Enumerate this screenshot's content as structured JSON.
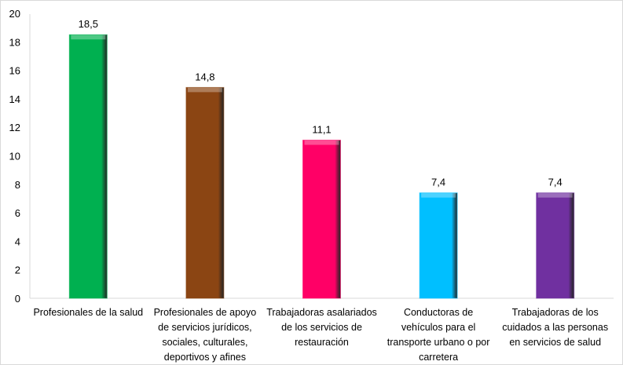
{
  "chart_data": {
    "type": "bar",
    "title": "",
    "xlabel": "",
    "ylabel": "",
    "ylim": [
      0,
      20
    ],
    "yticks": [
      0,
      2,
      4,
      6,
      8,
      10,
      12,
      14,
      16,
      18,
      20
    ],
    "grid": false,
    "categories": [
      "Profesionales de la salud",
      "Profesionales de apoyo de servicios jurídicos, sociales, culturales, deportivos y afines",
      "Trabajadoras asalariados de los servicios de restauración",
      "Conductoras de vehículos para el transporte urbano o por carretera",
      "Trabajadoras de los cuidados a las personas en servicios de salud"
    ],
    "category_lines": [
      [
        "Profesionales de la salud"
      ],
      [
        "Profesionales de apoyo",
        "de servicios jurídicos,",
        "sociales, culturales,",
        "deportivos y afines"
      ],
      [
        "Trabajadoras asalariados",
        "de los servicios de",
        "restauración"
      ],
      [
        "Conductoras de",
        "vehículos para el",
        "transporte urbano o por",
        "carretera"
      ],
      [
        "Trabajadoras de los",
        "cuidados a las personas",
        "en servicios de salud"
      ]
    ],
    "values": [
      18.5,
      14.8,
      11.1,
      7.4,
      7.4
    ],
    "data_labels": [
      "18,5",
      "14,8",
      "11,1",
      "7,4",
      "7,4"
    ],
    "colors": [
      "#00b050",
      "#8b4513",
      "#ff0066",
      "#00bfff",
      "#7030a0"
    ]
  }
}
